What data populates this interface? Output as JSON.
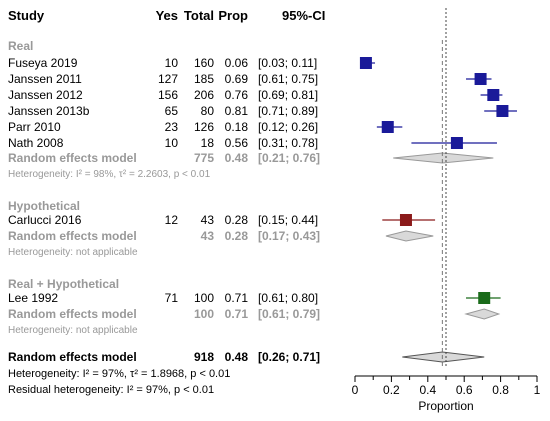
{
  "chart_data": {
    "type": "scatter",
    "title": "",
    "columns": [
      "Study",
      "Yes",
      "Total",
      "Prop",
      "95%-CI"
    ],
    "xlabel": "Proportion",
    "xlim": [
      0,
      1
    ],
    "xticks": [
      "0",
      "0.1",
      "0.2",
      "0.3",
      "0.4",
      "0.5",
      "0.6",
      "0.7",
      "0.8",
      "0.9",
      "1"
    ],
    "pooled_line_x": 0.48,
    "colors": {
      "Real": "#1a1a99",
      "Hypothetical": "#8b1a1a",
      "Real + Hypothetical": "#1a6b1a",
      "subgroup_text": "#999999",
      "diamond_fill": "#d9d9d9"
    },
    "groups": [
      {
        "name": "Real",
        "studies": [
          {
            "study": "Fuseya 2019",
            "yes": "10",
            "total": "160",
            "prop": "0.06",
            "ci": "[0.03; 0.11]",
            "x": 0.06,
            "lo": 0.03,
            "hi": 0.11
          },
          {
            "study": "Janssen 2011",
            "yes": "127",
            "total": "185",
            "prop": "0.69",
            "ci": "[0.61; 0.75]",
            "x": 0.69,
            "lo": 0.61,
            "hi": 0.75
          },
          {
            "study": "Janssen 2012",
            "yes": "156",
            "total": "206",
            "prop": "0.76",
            "ci": "[0.69; 0.81]",
            "x": 0.76,
            "lo": 0.69,
            "hi": 0.81
          },
          {
            "study": "Janssen 2013b",
            "yes": "65",
            "total": "80",
            "prop": "0.81",
            "ci": "[0.71; 0.89]",
            "x": 0.81,
            "lo": 0.71,
            "hi": 0.89
          },
          {
            "study": "Parr 2010",
            "yes": "23",
            "total": "126",
            "prop": "0.18",
            "ci": "[0.12; 0.26]",
            "x": 0.18,
            "lo": 0.12,
            "hi": 0.26
          },
          {
            "study": "Nath 2008",
            "yes": "10",
            "total": "18",
            "prop": "0.56",
            "ci": "[0.31; 0.78]",
            "x": 0.56,
            "lo": 0.31,
            "hi": 0.78
          }
        ],
        "summary": {
          "label": "Random effects model",
          "total": "775",
          "prop": "0.48",
          "ci": "[0.21; 0.76]",
          "x": 0.48,
          "lo": 0.21,
          "hi": 0.76
        },
        "heterogeneity": "Heterogeneity: I² = 98%, τ² = 2.2603, p < 0.01"
      },
      {
        "name": "Hypothetical",
        "studies": [
          {
            "study": "Carlucci 2016",
            "yes": "12",
            "total": "43",
            "prop": "0.28",
            "ci": "[0.15; 0.44]",
            "x": 0.28,
            "lo": 0.15,
            "hi": 0.44
          }
        ],
        "summary": {
          "label": "Random effects model",
          "total": "43",
          "prop": "0.28",
          "ci": "[0.17; 0.43]",
          "x": 0.28,
          "lo": 0.17,
          "hi": 0.43
        },
        "heterogeneity": "Heterogeneity: not applicable"
      },
      {
        "name": "Real + Hypothetical",
        "studies": [
          {
            "study": "Lee 1992",
            "yes": "71",
            "total": "100",
            "prop": "0.71",
            "ci": "[0.61; 0.80]",
            "x": 0.71,
            "lo": 0.61,
            "hi": 0.8
          }
        ],
        "summary": {
          "label": "Random effects model",
          "total": "100",
          "prop": "0.71",
          "ci": "[0.61; 0.79]",
          "x": 0.71,
          "lo": 0.61,
          "hi": 0.79
        },
        "heterogeneity": "Heterogeneity: not applicable"
      }
    ],
    "overall": {
      "label": "Random effects model",
      "total": "918",
      "prop": "0.48",
      "ci": "[0.26; 0.71]",
      "x": 0.48,
      "lo": 0.26,
      "hi": 0.71,
      "heterogeneity": "Heterogeneity: I² = 97%, τ² = 1.8968, p < 0.01",
      "residual_heterogeneity": "Residual heterogeneity: I² = 97%, p < 0.01"
    }
  }
}
